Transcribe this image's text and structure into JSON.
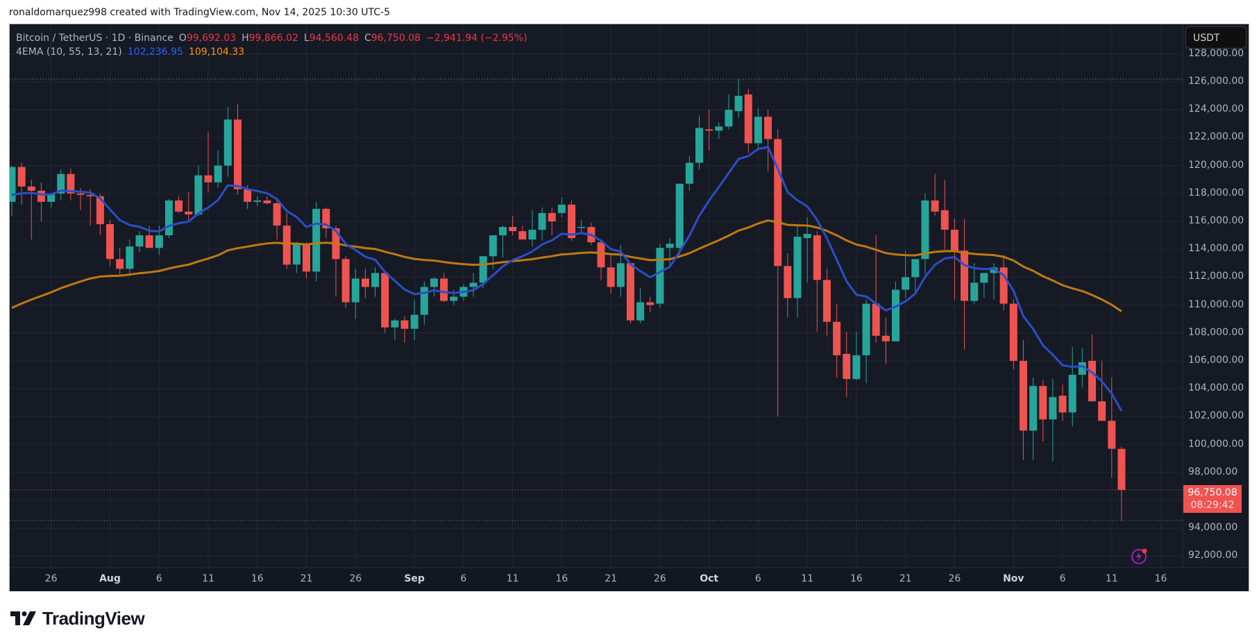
{
  "caption": "ronaldomarquez998 created with TradingView.com, Nov 14, 2025 10:30 UTC-5",
  "legend": {
    "symbol": "Bitcoin / TetherUS · 1D · Binance",
    "open_label": "O",
    "open": "99,692.03",
    "high_label": "H",
    "high": "99,866.02",
    "low_label": "L",
    "low": "94,560.48",
    "close_label": "C",
    "close": "96,750.08",
    "change": "−2,941.94 (−2.95%)",
    "indicator": "4EMA (10, 55, 13, 21)",
    "ema_fast": "102,236.95",
    "ema_slow": "109,104.33"
  },
  "currency_button": "USDT",
  "price_tag": {
    "price": "96,750.08",
    "countdown": "08:29:42"
  },
  "alert_icon": "lightning-alert-icon",
  "logo_text": "TradingView",
  "colors": {
    "up": "#26a69a",
    "down": "#ef5350",
    "ema_fast": "#2a4fc7",
    "ema_slow": "#c07a10",
    "background": "#161a25",
    "grid": "#232733",
    "price_tag": "#f05350"
  },
  "chart_data": {
    "type": "candlestick",
    "title": "Bitcoin / TetherUS · 1D · Binance",
    "xlabel": "",
    "ylabel": "USDT",
    "ylim": [
      91000,
      128000
    ],
    "y_ticks": [
      "128,000.00",
      "126,000.00",
      "124,000.00",
      "122,000.00",
      "120,000.00",
      "118,000.00",
      "116,000.00",
      "114,000.00",
      "112,000.00",
      "110,000.00",
      "108,000.00",
      "106,000.00",
      "104,000.00",
      "102,000.00",
      "100,000.00",
      "98,000.00",
      "94,000.00",
      "92,000.00"
    ],
    "x_ticks": [
      {
        "label": "26",
        "day": 4,
        "bold": false
      },
      {
        "label": "Aug",
        "day": 10,
        "bold": true
      },
      {
        "label": "6",
        "day": 15,
        "bold": false
      },
      {
        "label": "11",
        "day": 20,
        "bold": false
      },
      {
        "label": "16",
        "day": 25,
        "bold": false
      },
      {
        "label": "21",
        "day": 30,
        "bold": false
      },
      {
        "label": "26",
        "day": 35,
        "bold": false
      },
      {
        "label": "Sep",
        "day": 41,
        "bold": true
      },
      {
        "label": "6",
        "day": 46,
        "bold": false
      },
      {
        "label": "11",
        "day": 51,
        "bold": false
      },
      {
        "label": "16",
        "day": 56,
        "bold": false
      },
      {
        "label": "21",
        "day": 61,
        "bold": false
      },
      {
        "label": "26",
        "day": 66,
        "bold": false
      },
      {
        "label": "Oct",
        "day": 71,
        "bold": true
      },
      {
        "label": "6",
        "day": 76,
        "bold": false
      },
      {
        "label": "11",
        "day": 81,
        "bold": false
      },
      {
        "label": "16",
        "day": 86,
        "bold": false
      },
      {
        "label": "21",
        "day": 91,
        "bold": false
      },
      {
        "label": "26",
        "day": 96,
        "bold": false
      },
      {
        "label": "Nov",
        "day": 102,
        "bold": true
      },
      {
        "label": "6",
        "day": 107,
        "bold": false
      },
      {
        "label": "11",
        "day": 112,
        "bold": false
      },
      {
        "label": "16",
        "day": 117,
        "bold": false
      }
    ],
    "grid": true,
    "legend_position": "top-left",
    "start_date": "2025-07-22",
    "candles": [
      [
        117400,
        120000,
        116400,
        119900
      ],
      [
        119900,
        120200,
        117200,
        118500
      ],
      [
        118500,
        119000,
        114700,
        118200
      ],
      [
        118200,
        118800,
        116000,
        117400
      ],
      [
        117400,
        118000,
        117000,
        118000
      ],
      [
        118000,
        119700,
        117500,
        119400
      ],
      [
        119400,
        119800,
        117500,
        118000
      ],
      [
        118000,
        118400,
        116800,
        117900
      ],
      [
        117900,
        118300,
        115700,
        117800
      ],
      [
        117800,
        118000,
        115000,
        115800
      ],
      [
        115800,
        116100,
        112800,
        113300
      ],
      [
        113300,
        114100,
        112200,
        112600
      ],
      [
        112600,
        114700,
        112100,
        114200
      ],
      [
        114200,
        115300,
        113800,
        115000
      ],
      [
        115000,
        115700,
        114100,
        114100
      ],
      [
        114100,
        115700,
        113600,
        115000
      ],
      [
        115000,
        117600,
        114800,
        117500
      ],
      [
        117500,
        117800,
        116600,
        116700
      ],
      [
        116700,
        118100,
        116100,
        116500
      ],
      [
        116500,
        120000,
        116400,
        119300
      ],
      [
        119300,
        122400,
        118100,
        118800
      ],
      [
        118800,
        121100,
        118400,
        120000
      ],
      [
        120000,
        124200,
        119200,
        123300
      ],
      [
        123300,
        124400,
        117900,
        118300
      ],
      [
        118300,
        118600,
        116900,
        117400
      ],
      [
        117400,
        117800,
        117100,
        117500
      ],
      [
        117500,
        117800,
        117200,
        117300
      ],
      [
        117300,
        117700,
        114700,
        115700
      ],
      [
        115700,
        116600,
        112600,
        112900
      ],
      [
        112900,
        114500,
        112300,
        114400
      ],
      [
        114400,
        114500,
        111900,
        112400
      ],
      [
        112400,
        117400,
        111700,
        116900
      ],
      [
        116900,
        117000,
        114800,
        115500
      ],
      [
        115500,
        115700,
        110600,
        113300
      ],
      [
        113300,
        113500,
        109800,
        110200
      ],
      [
        110200,
        112600,
        109000,
        111900
      ],
      [
        111900,
        112600,
        110500,
        111300
      ],
      [
        111300,
        112700,
        110600,
        112300
      ],
      [
        112300,
        112500,
        108000,
        108400
      ],
      [
        108400,
        109000,
        107500,
        108900
      ],
      [
        108900,
        109200,
        107300,
        108300
      ],
      [
        108300,
        110400,
        107500,
        109300
      ],
      [
        109300,
        111700,
        108600,
        111300
      ],
      [
        111300,
        112000,
        110600,
        111900
      ],
      [
        111900,
        112300,
        110200,
        110300
      ],
      [
        110300,
        111100,
        110000,
        110600
      ],
      [
        110600,
        111500,
        110300,
        111300
      ],
      [
        111300,
        112300,
        110600,
        111600
      ],
      [
        111600,
        113500,
        111200,
        113500
      ],
      [
        113500,
        114400,
        112600,
        115000
      ],
      [
        115000,
        115700,
        113400,
        115600
      ],
      [
        115600,
        116400,
        115000,
        115300
      ],
      [
        115300,
        115700,
        114900,
        114700
      ],
      [
        114700,
        116800,
        114200,
        115400
      ],
      [
        115400,
        117000,
        114600,
        116600
      ],
      [
        116600,
        117000,
        115000,
        116000
      ],
      [
        116600,
        117700,
        116300,
        117200
      ],
      [
        117200,
        117500,
        114600,
        114800
      ],
      [
        115600,
        116100,
        115200,
        115600
      ],
      [
        115600,
        115900,
        114300,
        114500
      ],
      [
        114500,
        114700,
        111800,
        112700
      ],
      [
        112700,
        113700,
        110800,
        111300
      ],
      [
        111300,
        114300,
        110600,
        113000
      ],
      [
        113000,
        113000,
        108700,
        108900
      ],
      [
        108900,
        111200,
        108700,
        110200
      ],
      [
        110200,
        110600,
        109500,
        110000
      ],
      [
        110100,
        114400,
        109800,
        114100
      ],
      [
        114100,
        114800,
        112800,
        114400
      ],
      [
        114100,
        116600,
        113600,
        118700
      ],
      [
        118700,
        120700,
        118200,
        120200
      ],
      [
        120200,
        123600,
        119700,
        122700
      ],
      [
        122600,
        124000,
        121100,
        122500
      ],
      [
        122500,
        123100,
        121900,
        122800
      ],
      [
        122800,
        125100,
        122600,
        124000
      ],
      [
        123900,
        126200,
        123400,
        125000
      ],
      [
        125100,
        125500,
        120900,
        121600
      ],
      [
        121600,
        124100,
        121100,
        123500
      ],
      [
        123500,
        124000,
        119600,
        121900
      ],
      [
        121900,
        122600,
        102000,
        112800
      ],
      [
        112800,
        113700,
        109100,
        110500
      ],
      [
        110500,
        115800,
        109100,
        114900
      ],
      [
        114800,
        116300,
        111600,
        115100
      ],
      [
        115000,
        115300,
        108100,
        111800
      ],
      [
        111800,
        112600,
        107800,
        108800
      ],
      [
        108800,
        110100,
        104800,
        106400
      ],
      [
        106500,
        108100,
        103400,
        104700
      ],
      [
        104700,
        108100,
        104600,
        106400
      ],
      [
        106400,
        110400,
        104400,
        110100
      ],
      [
        110100,
        115000,
        107300,
        107800
      ],
      [
        107800,
        109100,
        105800,
        107400
      ],
      [
        107400,
        111700,
        107400,
        111100
      ],
      [
        111100,
        113900,
        110500,
        112000
      ],
      [
        112000,
        113200,
        110800,
        113300
      ],
      [
        113300,
        118000,
        112200,
        117500
      ],
      [
        117500,
        119400,
        116400,
        116700
      ],
      [
        116800,
        119000,
        114000,
        115400
      ],
      [
        115400,
        116200,
        110400,
        113900
      ],
      [
        113900,
        116200,
        106800,
        110300
      ],
      [
        110300,
        113000,
        110100,
        111600
      ],
      [
        111600,
        112100,
        110500,
        112300
      ],
      [
        112300,
        113000,
        110400,
        112700
      ],
      [
        112700,
        113600,
        109600,
        110100
      ],
      [
        110100,
        110400,
        105400,
        106000
      ],
      [
        106000,
        107500,
        98900,
        101000
      ],
      [
        101000,
        104800,
        98900,
        104200
      ],
      [
        104200,
        104600,
        100200,
        101800
      ],
      [
        101800,
        104700,
        98800,
        103400
      ],
      [
        103500,
        104300,
        101700,
        102300
      ],
      [
        102300,
        107000,
        101300,
        105000
      ],
      [
        105000,
        106900,
        104100,
        105900
      ],
      [
        106000,
        107900,
        103100,
        103100
      ],
      [
        103100,
        106000,
        101700,
        101700
      ],
      [
        101700,
        104800,
        97600,
        99700
      ],
      [
        99692,
        99866,
        94560,
        96750
      ]
    ],
    "series": [
      {
        "name": "EMA 10",
        "color": "#2a4fc7",
        "last": 102236.95
      },
      {
        "name": "EMA 55",
        "color": "#c07a10",
        "last": 109104.33
      }
    ],
    "last_price": 96750.08,
    "high_marker": 126200,
    "low_marker": 94560
  }
}
